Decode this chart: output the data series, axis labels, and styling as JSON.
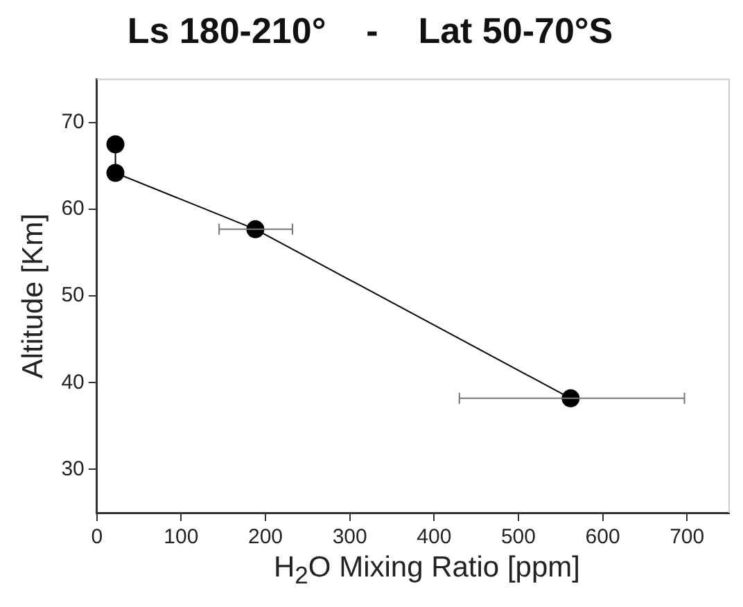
{
  "chart_data": {
    "type": "line",
    "title": "Ls 180-210°    -    Lat 50-70°S",
    "xlabel": "H$_{2}$O Mixing Ratio [ppm]",
    "ylabel": "Altitude [Km]",
    "x": [
      22,
      22,
      188,
      562
    ],
    "series": [
      {
        "color": "#000000",
        "values": [
          67.5,
          64.2,
          57.7,
          38.2
        ],
        "xerrors": [
          null,
          null,
          [
            145,
            232
          ],
          [
            430,
            697
          ]
        ]
      }
    ],
    "xlim": [
      0,
      750
    ],
    "xticks": [
      0,
      100,
      200,
      300,
      400,
      500,
      600,
      700
    ],
    "ylim": [
      25,
      75
    ],
    "yticks": [
      30,
      40,
      50,
      60,
      70
    ],
    "marker": "circle",
    "line_style": "solid",
    "grid": false,
    "legend": false
  }
}
